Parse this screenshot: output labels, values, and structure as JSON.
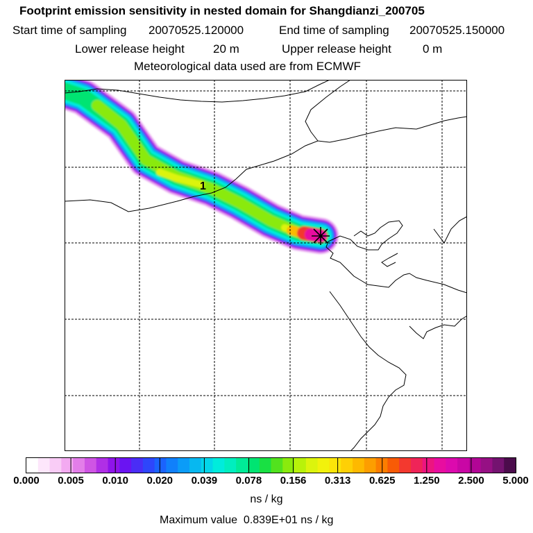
{
  "header": {
    "title": "Footprint emission sensitivity in nested domain for Shangdianzi_200705",
    "start_label": "Start time of sampling",
    "start_value": "20070525.120000",
    "end_label": "End time of sampling",
    "end_value": "20070525.150000",
    "lower_label": "Lower release height",
    "lower_value": "20 m",
    "upper_label": "Upper release height",
    "upper_value": "0 m",
    "met_line": "Meteorological data used are from ECMWF"
  },
  "map": {
    "release_label": "1",
    "receptor_marker": "station-star-icon"
  },
  "colorbar": {
    "ticks": [
      "0.000",
      "0.005",
      "0.010",
      "0.020",
      "0.039",
      "0.078",
      "0.156",
      "0.313",
      "0.625",
      "1.250",
      "2.500",
      "5.000"
    ],
    "units": "ns / kg",
    "colors": [
      "#ffffff",
      "#fde6fb",
      "#f9ccf6",
      "#f3aaf1",
      "#e37ee9",
      "#cf55e4",
      "#b02fe6",
      "#8f14ea",
      "#6a14f2",
      "#4a2df6",
      "#2e46fb",
      "#1b63fd",
      "#1080fb",
      "#0b9cf8",
      "#07b8f0",
      "#03d6ea",
      "#00ecdc",
      "#00eebf",
      "#00eb98",
      "#00e472",
      "#19e043",
      "#52e21e",
      "#8aea0d",
      "#b8f20a",
      "#dcf40d",
      "#f2f20c",
      "#fbe509",
      "#fed005",
      "#feb900",
      "#fd9e00",
      "#fc7e00",
      "#f85b06",
      "#f3392f",
      "#ef2458",
      "#ec1580",
      "#e80da0",
      "#dc0aae",
      "#c907a5",
      "#b20596",
      "#961084",
      "#741370",
      "#4b0c4c"
    ]
  },
  "footer": {
    "max_label": "Maximum value",
    "max_value": "0.839E+01",
    "max_units": "ns / kg"
  }
}
